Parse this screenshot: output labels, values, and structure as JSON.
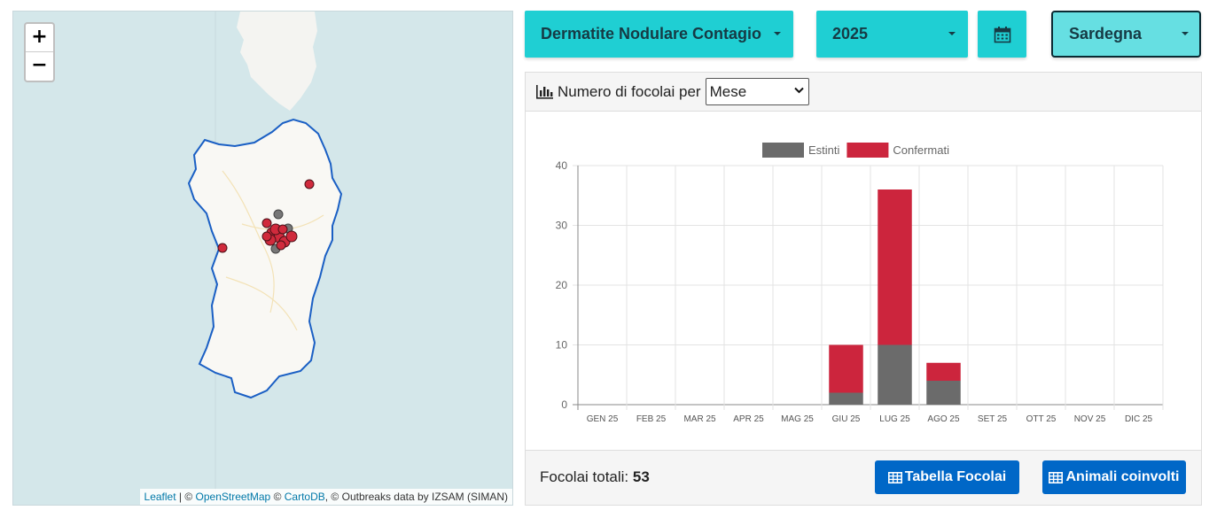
{
  "map": {
    "zoom_in_label": "+",
    "zoom_out_label": "−",
    "attribution": {
      "leaflet": "Leaflet",
      "sep1": " | © ",
      "osm": "OpenStreetMap",
      "sep2": " © ",
      "carto": "CartoDB",
      "rest": ", © Outbreaks data by IZSAM (SIMAN)"
    },
    "marker_colors": {
      "confermati": "#d02a3c",
      "estinti": "#777777"
    }
  },
  "toolbar": {
    "disease_label": "Dermatite Nodulare Contagio",
    "year_label": "2025",
    "calendar_icon": "calendar-icon",
    "region_label": "Sardegna"
  },
  "panel": {
    "header_label": "Numero di focolai per",
    "period_select_value": "Mese",
    "total_label": "Focolai totali:",
    "total_value": "53",
    "btn_tabella": "Tabella Focolai",
    "btn_animali": "Animali coinvolti"
  },
  "colors": {
    "accent": "#1fcfd3",
    "button_blue": "#0067c7",
    "estinti": "#6b6b6b",
    "confermati": "#cc253d"
  },
  "chart_data": {
    "type": "bar",
    "stacked": true,
    "categories": [
      "GEN 25",
      "FEB 25",
      "MAR 25",
      "APR 25",
      "MAG 25",
      "GIU 25",
      "LUG 25",
      "AGO 25",
      "SET 25",
      "OTT 25",
      "NOV 25",
      "DIC 25"
    ],
    "series": [
      {
        "name": "Estinti",
        "color": "#6b6b6b",
        "values": [
          0,
          0,
          0,
          0,
          0,
          2,
          10,
          4,
          0,
          0,
          0,
          0
        ]
      },
      {
        "name": "Confermati",
        "color": "#cc253d",
        "values": [
          0,
          0,
          0,
          0,
          0,
          8,
          26,
          3,
          0,
          0,
          0,
          0
        ]
      }
    ],
    "ylim": [
      0,
      40
    ],
    "yticks": [
      0,
      10,
      20,
      30,
      40
    ],
    "grid": true,
    "legend": "top-center"
  }
}
